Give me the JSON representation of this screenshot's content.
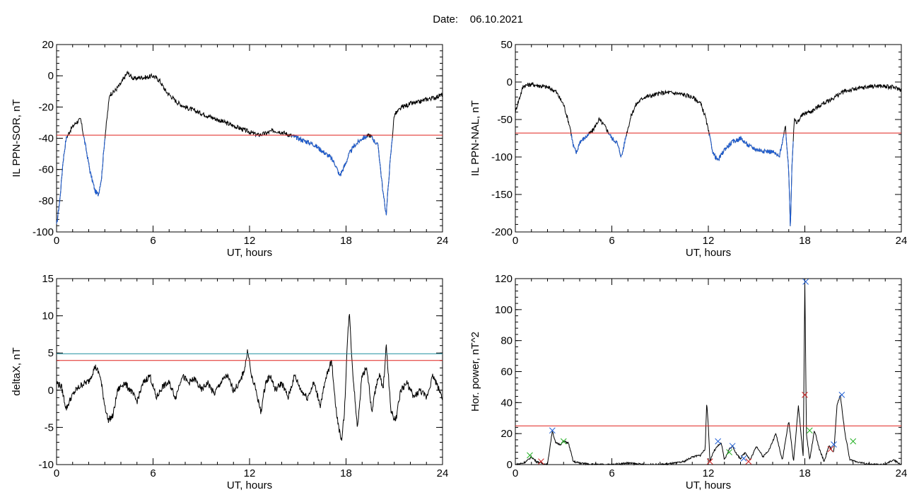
{
  "header": {
    "date_label": "Date:",
    "date_value": "06.10.2021"
  },
  "colors": {
    "trace": "#000000",
    "highlight": "#1f5fd6",
    "threshold": "#e0201c",
    "threshold2": "#1e8fa0",
    "marker_blue": "#1f5fd6",
    "marker_red": "#d02020",
    "marker_green": "#22b022"
  },
  "chart_data": [
    {
      "id": "il-sor",
      "type": "line",
      "title": "",
      "xlabel": "UT, hours",
      "ylabel": "IL PPN-SOR, nT",
      "xlim": [
        0,
        24
      ],
      "ylim": [
        -100,
        20
      ],
      "xticks": [
        0,
        6,
        12,
        18,
        24
      ],
      "xtick_labels": [
        "0",
        "6",
        "12",
        "18",
        "24"
      ],
      "yticks": [
        -100,
        -80,
        -60,
        -40,
        -20,
        0,
        20
      ],
      "ytick_labels": [
        "-100",
        "-80",
        "-60",
        "-40",
        "-20",
        "0",
        "20"
      ],
      "series": [
        {
          "x": [
            0,
            0.2,
            0.4,
            0.6,
            0.9,
            1.2,
            1.5,
            1.8,
            2.1,
            2.4,
            2.6,
            2.8,
            3.0,
            3.3,
            3.6,
            4.0,
            4.4,
            4.8,
            5.2,
            5.6,
            6.0,
            6.4,
            6.8,
            7.0,
            7.5,
            8.0,
            8.5,
            9.0,
            9.5,
            10.0,
            10.5,
            11.0,
            11.5,
            12.0,
            12.5,
            13.0,
            13.5,
            14.0,
            14.5,
            15.0,
            15.5,
            16.0,
            16.5,
            17.0,
            17.3,
            17.6,
            17.9,
            18.2,
            18.5,
            19.0,
            19.5,
            20.0,
            20.3,
            20.5,
            20.7,
            21.0,
            21.5,
            22.0,
            22.5,
            23.0,
            23.5,
            24.0
          ],
          "values": [
            -96,
            -80,
            -55,
            -40,
            -34,
            -30,
            -28,
            -45,
            -62,
            -74,
            -76,
            -65,
            -40,
            -12,
            -10,
            -5,
            2,
            -2,
            -1,
            -1,
            0,
            -3,
            -10,
            -12,
            -17,
            -20,
            -22,
            -24,
            -26,
            -28,
            -30,
            -32,
            -34,
            -36,
            -38,
            -37,
            -35,
            -36,
            -38,
            -40,
            -42,
            -44,
            -48,
            -52,
            -56,
            -64,
            -58,
            -50,
            -45,
            -40,
            -38,
            -45,
            -75,
            -89,
            -60,
            -25,
            -20,
            -18,
            -17,
            -15,
            -14,
            -12
          ]
        }
      ],
      "thresholds": [
        -38
      ]
    },
    {
      "id": "il-nal",
      "type": "line",
      "title": "",
      "xlabel": "UT, hours",
      "ylabel": "IL PPN-NAL, nT",
      "xlim": [
        0,
        24
      ],
      "ylim": [
        -200,
        50
      ],
      "xticks": [
        0,
        6,
        12,
        18,
        24
      ],
      "xtick_labels": [
        "0",
        "6",
        "12",
        "18",
        "24"
      ],
      "yticks": [
        -200,
        -150,
        -100,
        -50,
        0,
        50
      ],
      "ytick_labels": [
        "-200",
        "-150",
        "-100",
        "-50",
        "0",
        "50"
      ],
      "series": [
        {
          "x": [
            0,
            0.2,
            0.5,
            1.0,
            1.5,
            2.0,
            2.5,
            3.0,
            3.4,
            3.6,
            3.8,
            4.0,
            4.3,
            4.8,
            5.2,
            5.6,
            6.0,
            6.3,
            6.6,
            6.9,
            7.2,
            7.5,
            8.0,
            8.5,
            9.0,
            9.5,
            10.0,
            10.5,
            11.0,
            11.5,
            11.8,
            12.0,
            12.3,
            12.6,
            13.0,
            13.5,
            14.0,
            14.5,
            15.0,
            15.5,
            16.0,
            16.4,
            16.8,
            17.0,
            17.1,
            17.2,
            17.35,
            17.5,
            17.8,
            18.0,
            18.5,
            19.0,
            19.5,
            20.0,
            20.5,
            21.0,
            21.5,
            22.0,
            22.5,
            23.0,
            23.5,
            24.0
          ],
          "values": [
            -40,
            -25,
            -5,
            -3,
            -5,
            -7,
            -12,
            -30,
            -60,
            -85,
            -95,
            -80,
            -75,
            -65,
            -50,
            -60,
            -75,
            -80,
            -100,
            -70,
            -45,
            -30,
            -20,
            -18,
            -15,
            -14,
            -15,
            -17,
            -20,
            -28,
            -45,
            -65,
            -95,
            -105,
            -90,
            -80,
            -75,
            -85,
            -90,
            -92,
            -93,
            -100,
            -60,
            -120,
            -195,
            -110,
            -50,
            -55,
            -45,
            -42,
            -38,
            -30,
            -25,
            -18,
            -12,
            -10,
            -8,
            -6,
            -5,
            -6,
            -7,
            -10
          ]
        }
      ],
      "thresholds": [
        -68
      ]
    },
    {
      "id": "deltax",
      "type": "line",
      "title": "",
      "xlabel": "UT, hours",
      "ylabel": "deltaX, nT",
      "xlim": [
        0,
        24
      ],
      "ylim": [
        -10,
        15
      ],
      "xticks": [
        0,
        6,
        12,
        18,
        24
      ],
      "xtick_labels": [
        "0",
        "6",
        "12",
        "18",
        "24"
      ],
      "yticks": [
        -10,
        -5,
        0,
        5,
        10,
        15
      ],
      "ytick_labels": [
        "-10",
        "-5",
        "0",
        "5",
        "10",
        "15"
      ],
      "series": [
        {
          "x": [
            0,
            0.3,
            0.6,
            0.9,
            1.2,
            1.6,
            2.0,
            2.4,
            2.7,
            3.0,
            3.2,
            3.5,
            3.8,
            4.2,
            4.6,
            5.0,
            5.4,
            5.8,
            6.2,
            6.6,
            7.0,
            7.4,
            7.8,
            8.2,
            8.6,
            9.0,
            9.4,
            9.8,
            10.2,
            10.6,
            11.0,
            11.4,
            11.7,
            11.9,
            12.1,
            12.4,
            12.7,
            13.0,
            13.3,
            13.6,
            14.0,
            14.4,
            14.8,
            15.2,
            15.6,
            16.0,
            16.4,
            16.8,
            17.1,
            17.4,
            17.7,
            17.9,
            18.05,
            18.2,
            18.4,
            18.7,
            19.0,
            19.3,
            19.6,
            19.9,
            20.1,
            20.3,
            20.5,
            20.8,
            21.1,
            21.4,
            21.8,
            22.2,
            22.6,
            23.0,
            23.4,
            23.8,
            24.0
          ],
          "values": [
            1,
            0.5,
            -2.5,
            -1,
            0,
            0.8,
            1.2,
            3.2,
            2,
            -2,
            -4,
            -3.5,
            0,
            1,
            0,
            -1.5,
            1,
            2,
            -1,
            0.5,
            1,
            -1,
            2,
            1,
            1.5,
            0,
            1,
            -0.5,
            1,
            2,
            0,
            1,
            3,
            5.5,
            2,
            0,
            -3,
            1,
            2,
            0,
            1,
            -1,
            2,
            0,
            -1,
            1,
            -2,
            2,
            4,
            -3,
            -7,
            -3,
            5,
            10.5,
            3,
            -5,
            2,
            3,
            -3,
            1,
            2,
            0,
            6,
            -3,
            -4,
            0,
            1,
            -1,
            0,
            -1,
            2,
            0,
            -1
          ]
        }
      ],
      "thresholds": [
        4,
        4.9
      ]
    },
    {
      "id": "hor-power",
      "type": "line",
      "title": "",
      "xlabel": "UT, hours",
      "ylabel": "Hor. power, nT^2",
      "xlim": [
        0,
        24
      ],
      "ylim": [
        0,
        120
      ],
      "xticks": [
        0,
        6,
        12,
        18,
        24
      ],
      "xtick_labels": [
        "0",
        "6",
        "12",
        "18",
        "24"
      ],
      "yticks": [
        0,
        20,
        40,
        60,
        80,
        100,
        120
      ],
      "ytick_labels": [
        "0",
        "20",
        "40",
        "60",
        "80",
        "100",
        "120"
      ],
      "series": [
        {
          "x": [
            0,
            0.5,
            0.8,
            1.0,
            1.3,
            1.6,
            2.0,
            2.3,
            2.5,
            2.8,
            3.0,
            3.3,
            3.6,
            4.0,
            5.0,
            6.0,
            7.0,
            8.0,
            9.0,
            10.0,
            10.5,
            11.0,
            11.5,
            11.8,
            11.9,
            12.0,
            12.1,
            12.3,
            12.6,
            12.8,
            13.0,
            13.3,
            13.5,
            13.8,
            14.0,
            14.3,
            14.6,
            15.0,
            15.4,
            15.8,
            16.2,
            16.6,
            17.0,
            17.3,
            17.6,
            17.9,
            18.0,
            18.1,
            18.3,
            18.6,
            18.9,
            19.2,
            19.5,
            19.8,
            20.0,
            20.2,
            20.5,
            20.8,
            21.2,
            21.6,
            22.0,
            23.0,
            23.5,
            24.0
          ],
          "values": [
            0,
            1,
            3,
            5,
            2,
            1,
            0,
            22,
            14,
            13,
            15,
            14,
            2,
            1,
            0,
            0,
            1,
            0,
            0,
            1,
            2,
            5,
            6,
            10,
            40,
            25,
            2,
            8,
            12,
            14,
            3,
            10,
            12,
            6,
            4,
            8,
            3,
            12,
            5,
            10,
            20,
            3,
            28,
            2,
            38,
            5,
            118,
            20,
            3,
            22,
            10,
            2,
            12,
            8,
            38,
            45,
            20,
            3,
            2,
            1,
            0,
            0,
            3,
            0
          ]
        }
      ],
      "thresholds": [
        25
      ],
      "markers": [
        {
          "x": 2.3,
          "y": 22,
          "color": "blue"
        },
        {
          "x": 12.6,
          "y": 15,
          "color": "blue"
        },
        {
          "x": 13.5,
          "y": 12,
          "color": "blue"
        },
        {
          "x": 14.2,
          "y": 4,
          "color": "blue"
        },
        {
          "x": 18.05,
          "y": 118,
          "color": "blue"
        },
        {
          "x": 19.8,
          "y": 13,
          "color": "blue"
        },
        {
          "x": 20.3,
          "y": 45,
          "color": "blue"
        },
        {
          "x": 0.9,
          "y": 6,
          "color": "green"
        },
        {
          "x": 3.0,
          "y": 15,
          "color": "green"
        },
        {
          "x": 13.3,
          "y": 8,
          "color": "green"
        },
        {
          "x": 18.3,
          "y": 22,
          "color": "green"
        },
        {
          "x": 21.0,
          "y": 15,
          "color": "green"
        },
        {
          "x": 1.6,
          "y": 2,
          "color": "red"
        },
        {
          "x": 12.1,
          "y": 2,
          "color": "red"
        },
        {
          "x": 14.5,
          "y": 2,
          "color": "red"
        },
        {
          "x": 18.0,
          "y": 45,
          "color": "red"
        },
        {
          "x": 19.6,
          "y": 10,
          "color": "red"
        }
      ]
    }
  ]
}
